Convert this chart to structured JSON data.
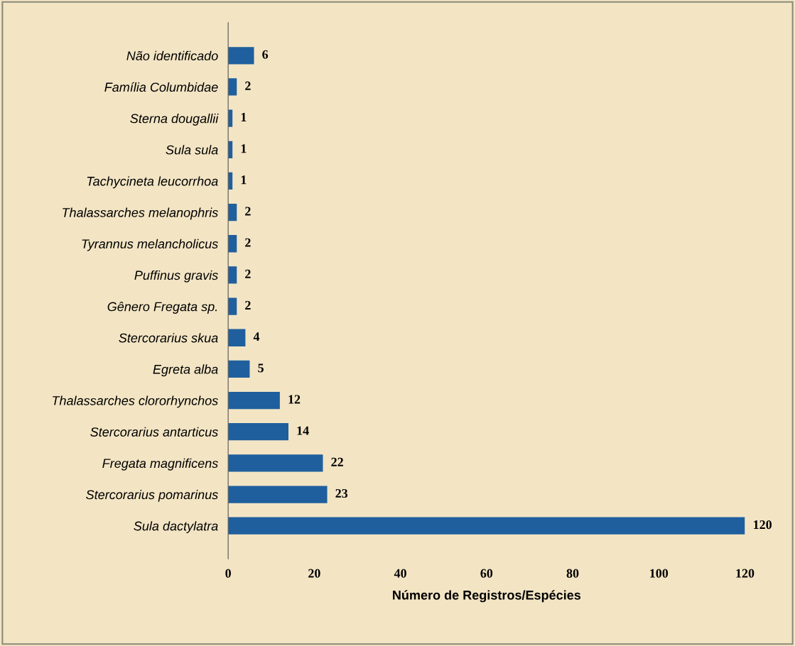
{
  "chart_data": {
    "type": "bar",
    "orientation": "horizontal",
    "xlabel": "Número de Registros/Espécies",
    "categories": [
      "Não identificado",
      "Família Columbidae",
      "Sterna dougallii",
      "Sula sula",
      "Tachycineta leucorrhoa",
      "Thalassarches melanophris",
      "Tyrannus melancholicus",
      "Puffinus gravis",
      "Gênero Fregata sp.",
      "Stercorarius skua",
      "Egreta alba",
      "Thalassarches clororhynchos",
      "Stercorarius antarticus",
      "Fregata magnificens",
      "Stercorarius pomarinus",
      "Sula dactylatra"
    ],
    "values": [
      6,
      2,
      1,
      1,
      1,
      2,
      2,
      2,
      2,
      4,
      5,
      12,
      14,
      22,
      23,
      120
    ],
    "color": "#1f5f9e",
    "xlim": [
      0,
      120
    ],
    "xticks": [
      0,
      20,
      40,
      60,
      80,
      100,
      120
    ],
    "data_labels": true,
    "grid": false,
    "legend": false
  }
}
